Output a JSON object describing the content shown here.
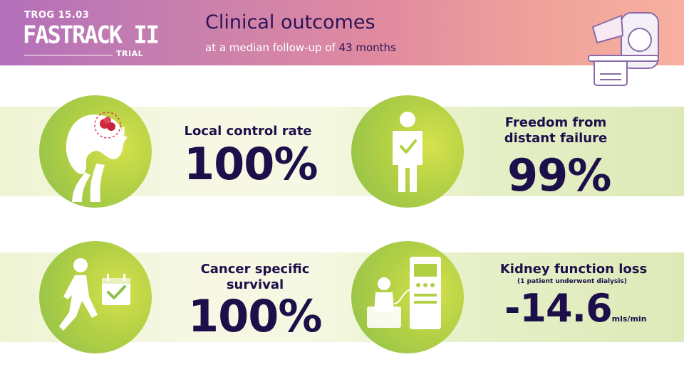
{
  "header": {
    "logo_top": "TROG 15.03",
    "logo_main": "FASTRACK II",
    "logo_sub": "TRIAL",
    "title": "Clinical outcomes",
    "subtitle_prefix": "at a median follow-up of ",
    "subtitle_number": "43 months"
  },
  "outcomes": [
    {
      "label": "Local control rate",
      "value": "100%",
      "icon": "kidney-tumor-icon"
    },
    {
      "label_line1": "Freedom from",
      "label_line2": "distant failure",
      "value": "99%",
      "icon": "person-check-icon"
    },
    {
      "label_line1": "Cancer specific",
      "label_line2": "survival",
      "value": "100%",
      "icon": "walking-calendar-icon"
    },
    {
      "label": "Kidney function loss",
      "note": "(1 patient underwent dialysis)",
      "value": "-14.6",
      "unit": "mls/min",
      "icon": "dialysis-icon"
    }
  ],
  "colors": {
    "header_gradient_start": "#b36fba",
    "header_gradient_end": "#f7b0a0",
    "text_dark": "#1c0f4a",
    "circle_green": "#b3d045",
    "band_green": "#dde9b7"
  }
}
